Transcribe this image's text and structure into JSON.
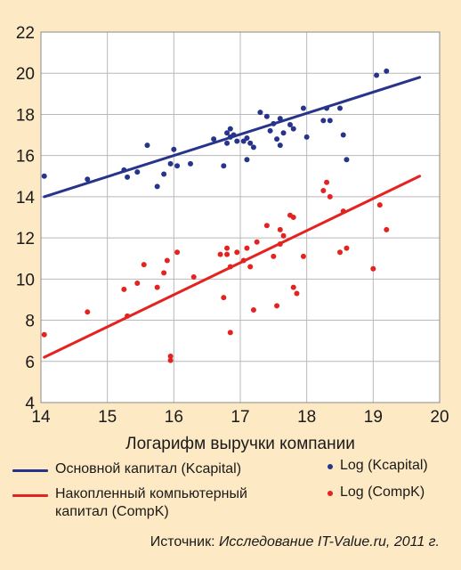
{
  "chart_data": {
    "type": "scatter",
    "xlabel": "Логарифм выручки компании",
    "ylabel": "",
    "xlim": [
      14,
      20
    ],
    "ylim": [
      4,
      22
    ],
    "xticks": [
      14,
      15,
      16,
      17,
      18,
      19,
      20
    ],
    "yticks": [
      4,
      6,
      8,
      10,
      12,
      14,
      16,
      18,
      20,
      22
    ],
    "grid": true,
    "legend_position": "bottom",
    "colors": {
      "blue": "#27348b",
      "red": "#e42320",
      "background": "#fde9c4",
      "plot_bg": "#ffffff",
      "grid": "#b9b9b9"
    },
    "series": [
      {
        "name": "Основной капитал (Kcapital)",
        "kind": "line",
        "color": "#27348b",
        "x": [
          14.05,
          19.7
        ],
        "y": [
          14.0,
          19.8
        ]
      },
      {
        "name": "Накопленный компьютерный капитал (CompK)",
        "kind": "line",
        "color": "#e42320",
        "x": [
          14.05,
          19.7
        ],
        "y": [
          6.2,
          15.0
        ]
      },
      {
        "name": "Log (Kcapital)",
        "kind": "scatter",
        "color": "#27348b",
        "points": [
          [
            14.05,
            15.0
          ],
          [
            14.7,
            14.85
          ],
          [
            15.25,
            15.3
          ],
          [
            15.3,
            14.95
          ],
          [
            15.45,
            15.2
          ],
          [
            15.6,
            16.5
          ],
          [
            15.75,
            14.5
          ],
          [
            15.85,
            15.1
          ],
          [
            15.95,
            15.6
          ],
          [
            16.0,
            16.3
          ],
          [
            16.05,
            15.5
          ],
          [
            16.25,
            15.6
          ],
          [
            16.6,
            16.8
          ],
          [
            16.75,
            15.5
          ],
          [
            16.8,
            16.6
          ],
          [
            16.8,
            17.1
          ],
          [
            16.85,
            16.9
          ],
          [
            16.85,
            17.3
          ],
          [
            16.9,
            17.0
          ],
          [
            16.95,
            16.7
          ],
          [
            17.05,
            16.7
          ],
          [
            17.1,
            16.85
          ],
          [
            17.1,
            15.8
          ],
          [
            17.15,
            16.6
          ],
          [
            17.2,
            16.4
          ],
          [
            17.3,
            18.1
          ],
          [
            17.4,
            17.9
          ],
          [
            17.45,
            17.2
          ],
          [
            17.5,
            17.55
          ],
          [
            17.55,
            16.8
          ],
          [
            17.6,
            16.5
          ],
          [
            17.6,
            17.8
          ],
          [
            17.65,
            17.1
          ],
          [
            17.75,
            17.5
          ],
          [
            17.8,
            17.3
          ],
          [
            17.95,
            18.3
          ],
          [
            18.0,
            16.9
          ],
          [
            18.25,
            17.7
          ],
          [
            18.3,
            18.3
          ],
          [
            18.35,
            17.7
          ],
          [
            18.5,
            18.3
          ],
          [
            18.55,
            17.0
          ],
          [
            18.6,
            15.8
          ],
          [
            19.05,
            19.9
          ],
          [
            19.2,
            20.1
          ]
        ]
      },
      {
        "name": "Log (CompK)",
        "kind": "scatter",
        "color": "#e42320",
        "points": [
          [
            14.05,
            7.3
          ],
          [
            14.7,
            8.4
          ],
          [
            15.25,
            9.5
          ],
          [
            15.3,
            8.2
          ],
          [
            15.45,
            9.8
          ],
          [
            15.55,
            10.7
          ],
          [
            15.75,
            9.6
          ],
          [
            15.85,
            10.3
          ],
          [
            15.9,
            10.9
          ],
          [
            15.95,
            6.25
          ],
          [
            15.95,
            6.05
          ],
          [
            16.05,
            11.3
          ],
          [
            16.3,
            10.1
          ],
          [
            16.7,
            11.2
          ],
          [
            16.75,
            9.1
          ],
          [
            16.8,
            11.5
          ],
          [
            16.8,
            11.2
          ],
          [
            16.85,
            10.6
          ],
          [
            16.85,
            7.4
          ],
          [
            16.95,
            11.3
          ],
          [
            17.05,
            10.9
          ],
          [
            17.1,
            11.5
          ],
          [
            17.15,
            10.6
          ],
          [
            17.2,
            8.5
          ],
          [
            17.25,
            11.8
          ],
          [
            17.4,
            12.6
          ],
          [
            17.5,
            11.1
          ],
          [
            17.55,
            8.7
          ],
          [
            17.6,
            12.4
          ],
          [
            17.65,
            12.1
          ],
          [
            17.6,
            11.7
          ],
          [
            17.75,
            13.1
          ],
          [
            17.8,
            13.0
          ],
          [
            17.8,
            9.6
          ],
          [
            17.85,
            9.3
          ],
          [
            17.95,
            11.1
          ],
          [
            18.25,
            14.3
          ],
          [
            18.3,
            14.7
          ],
          [
            18.35,
            14.0
          ],
          [
            18.5,
            11.3
          ],
          [
            18.55,
            13.3
          ],
          [
            18.6,
            11.5
          ],
          [
            19.0,
            10.5
          ],
          [
            19.1,
            13.6
          ],
          [
            19.2,
            12.4
          ]
        ]
      }
    ]
  },
  "legend": {
    "line_blue": "Основной капитал (Kcapital)",
    "line_red_1": "Накопленный компьютерный",
    "line_red_2": "капитал (CompK)",
    "dots_blue": "Log (Kcapital)",
    "dots_red": "Log (CompK)"
  },
  "source": {
    "prefix": "Источник: ",
    "text": "Исследование IT-Value.ru, 2011 г."
  }
}
